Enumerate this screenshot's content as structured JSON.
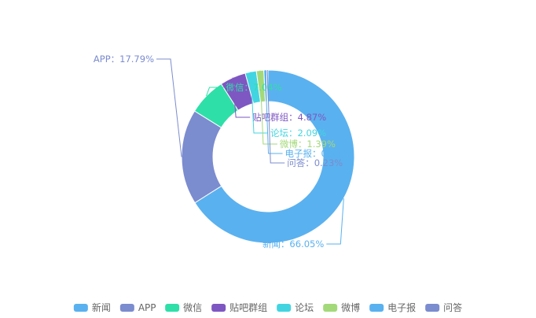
{
  "chart_data": {
    "type": "pie",
    "donut": true,
    "legend_position": "bottom",
    "title": "",
    "categories": [
      "新闻",
      "APP",
      "微信",
      "贴吧群组",
      "论坛",
      "微博",
      "电子报",
      "问答"
    ],
    "values": [
      66.05,
      17.79,
      7.04,
      4.87,
      2.09,
      1.39,
      0.54,
      0.23
    ],
    "value_unit": "%",
    "labels": [
      "新闻：66.05%",
      "APP：17.79%",
      "微信：7.04%",
      "贴吧群组：4.87%",
      "论坛：2.09%",
      "微博：1.39%",
      "电子报：0.54%",
      "问答：0.23%"
    ],
    "colors": [
      "#5ab1ef",
      "#7b8ccf",
      "#2fdfa8",
      "#7e57c2",
      "#42d5e1",
      "#a4d97a",
      "#5ab1ef",
      "#7b8ccf"
    ]
  }
}
